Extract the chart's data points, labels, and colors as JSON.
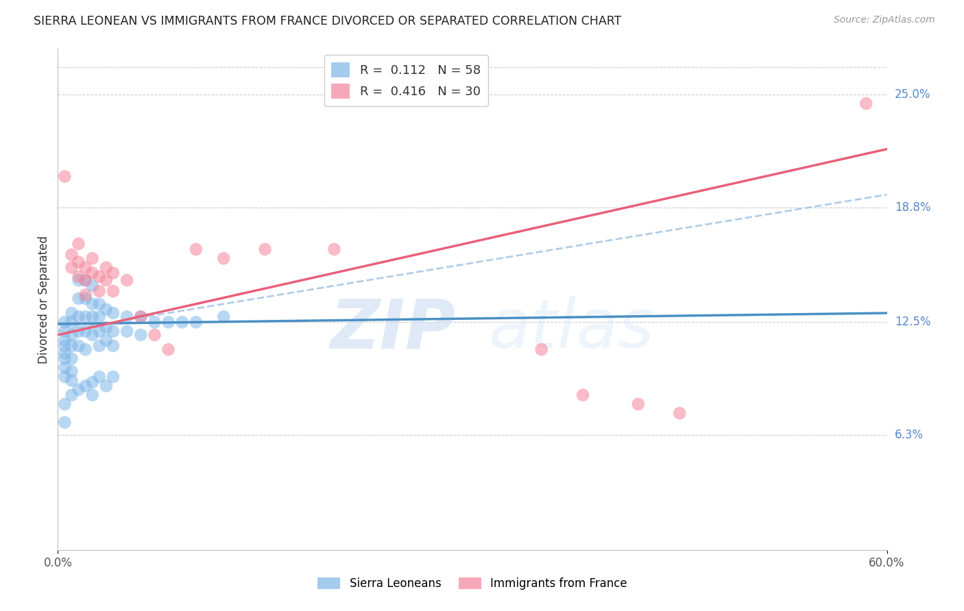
{
  "title": "SIERRA LEONEAN VS IMMIGRANTS FROM FRANCE DIVORCED OR SEPARATED CORRELATION CHART",
  "source": "Source: ZipAtlas.com",
  "ylabel": "Divorced or Separated",
  "blue_color": "#7EB6E8",
  "pink_color": "#F4849A",
  "blue_line_color": "#4A90C4",
  "pink_line_color": "#E8607A",
  "dashed_line_color": "#A8C8E8",
  "watermark_zip": "ZIP",
  "watermark_atlas": "atlas",
  "xlim": [
    0.0,
    0.6
  ],
  "ylim": [
    0.0,
    0.275
  ],
  "ylabel_values": [
    0.063,
    0.125,
    0.188,
    0.25
  ],
  "ylabel_labels": [
    "6.3%",
    "12.5%",
    "18.8%",
    "25.0%"
  ],
  "xtick_positions": [
    0.0,
    0.6
  ],
  "xtick_labels": [
    "0.0%",
    "60.0%"
  ],
  "blue_R": 0.112,
  "blue_N": 58,
  "pink_R": 0.416,
  "pink_N": 30,
  "blue_x": [
    0.005,
    0.005,
    0.005,
    0.005,
    0.005,
    0.005,
    0.005,
    0.005,
    0.01,
    0.01,
    0.01,
    0.01,
    0.01,
    0.01,
    0.01,
    0.015,
    0.015,
    0.015,
    0.015,
    0.015,
    0.02,
    0.02,
    0.02,
    0.02,
    0.02,
    0.025,
    0.025,
    0.025,
    0.025,
    0.03,
    0.03,
    0.03,
    0.03,
    0.035,
    0.035,
    0.035,
    0.04,
    0.04,
    0.04,
    0.05,
    0.05,
    0.06,
    0.06,
    0.07,
    0.08,
    0.09,
    0.1,
    0.12,
    0.005,
    0.005,
    0.01,
    0.015,
    0.02,
    0.025,
    0.025,
    0.03,
    0.035,
    0.04
  ],
  "blue_y": [
    0.125,
    0.12,
    0.115,
    0.112,
    0.108,
    0.105,
    0.1,
    0.095,
    0.13,
    0.125,
    0.118,
    0.112,
    0.105,
    0.098,
    0.093,
    0.148,
    0.138,
    0.128,
    0.12,
    0.112,
    0.148,
    0.138,
    0.128,
    0.12,
    0.11,
    0.145,
    0.135,
    0.128,
    0.118,
    0.135,
    0.128,
    0.12,
    0.112,
    0.132,
    0.122,
    0.115,
    0.13,
    0.12,
    0.112,
    0.128,
    0.12,
    0.128,
    0.118,
    0.125,
    0.125,
    0.125,
    0.125,
    0.128,
    0.08,
    0.07,
    0.085,
    0.088,
    0.09,
    0.092,
    0.085,
    0.095,
    0.09,
    0.095
  ],
  "pink_x": [
    0.005,
    0.01,
    0.01,
    0.015,
    0.015,
    0.015,
    0.02,
    0.02,
    0.02,
    0.025,
    0.025,
    0.03,
    0.03,
    0.035,
    0.035,
    0.04,
    0.04,
    0.05,
    0.06,
    0.07,
    0.08,
    0.1,
    0.12,
    0.15,
    0.2,
    0.35,
    0.38,
    0.42,
    0.45,
    0.585
  ],
  "pink_y": [
    0.205,
    0.162,
    0.155,
    0.168,
    0.158,
    0.15,
    0.155,
    0.148,
    0.14,
    0.16,
    0.152,
    0.15,
    0.142,
    0.155,
    0.148,
    0.152,
    0.142,
    0.148,
    0.128,
    0.118,
    0.11,
    0.165,
    0.16,
    0.165,
    0.165,
    0.11,
    0.085,
    0.08,
    0.075,
    0.245
  ],
  "blue_trend_x0": 0.0,
  "blue_trend_y0": 0.124,
  "blue_trend_x1": 0.6,
  "blue_trend_y1": 0.13,
  "pink_trend_x0": 0.0,
  "pink_trend_y0": 0.118,
  "pink_trend_x1": 0.6,
  "pink_trend_y1": 0.22,
  "dashed_trend_x0": 0.0,
  "dashed_trend_y0": 0.12,
  "dashed_trend_x1": 0.6,
  "dashed_trend_y1": 0.195
}
